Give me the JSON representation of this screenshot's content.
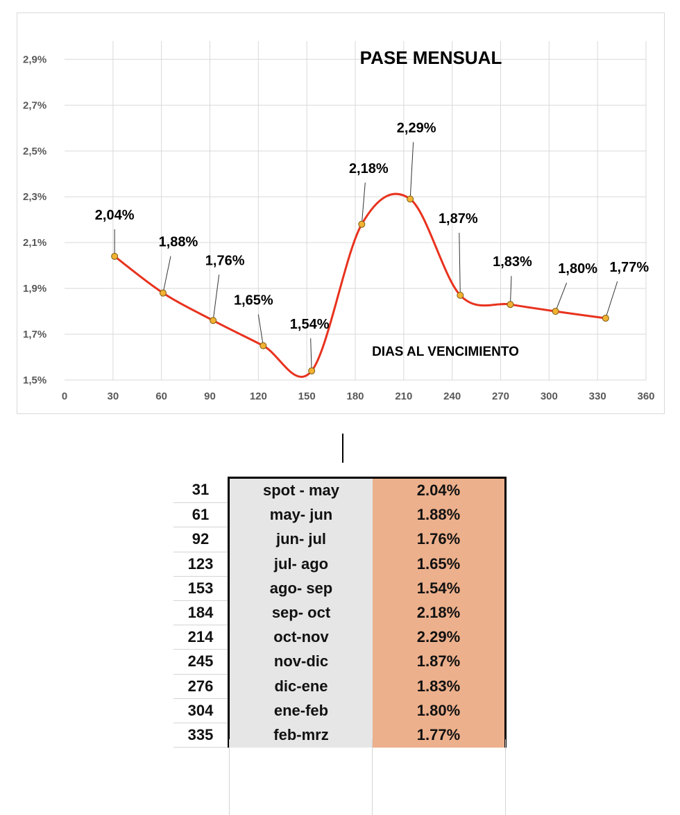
{
  "chart_data": {
    "type": "line",
    "title": "PASE MENSUAL",
    "xlabel": "DIAS AL VENCIMIENTO",
    "ylabel": "",
    "xlim": [
      0,
      360
    ],
    "ylim": [
      1.5,
      3.0
    ],
    "x_ticks": [
      "0",
      "30",
      "60",
      "90",
      "120",
      "150",
      "180",
      "210",
      "240",
      "270",
      "300",
      "330",
      "360"
    ],
    "y_ticks": [
      "1,5%",
      "1,7%",
      "1,9%",
      "2,1%",
      "2,3%",
      "2,5%",
      "2,7%",
      "2,9%"
    ],
    "grid": "vertical and horizontal",
    "line_color": "#e8321e",
    "marker_color": "#f2b233",
    "series": [
      {
        "x": [
          31,
          61,
          92,
          123,
          153,
          184,
          214,
          245,
          276,
          304,
          335
        ],
        "y": [
          2.04,
          1.88,
          1.76,
          1.65,
          1.54,
          2.18,
          2.29,
          1.87,
          1.83,
          1.8,
          1.77
        ],
        "labels": [
          "2,04%",
          "1,88%",
          "1,76%",
          "1,65%",
          "1,54%",
          "2,18%",
          "2,29%",
          "1,87%",
          "1,83%",
          "1,80%",
          "1,77%"
        ]
      }
    ]
  },
  "table": {
    "rows": [
      {
        "days": "31",
        "period": "spot - may",
        "value": "2.04%"
      },
      {
        "days": "61",
        "period": "may- jun",
        "value": "1.88%"
      },
      {
        "days": "92",
        "period": "jun- jul",
        "value": "1.76%"
      },
      {
        "days": "123",
        "period": "jul- ago",
        "value": "1.65%"
      },
      {
        "days": "153",
        "period": "ago- sep",
        "value": "1.54%"
      },
      {
        "days": "184",
        "period": "sep- oct",
        "value": "2.18%"
      },
      {
        "days": "214",
        "period": "oct-nov",
        "value": "2.29%"
      },
      {
        "days": "245",
        "period": "nov-dic",
        "value": "1.87%"
      },
      {
        "days": "276",
        "period": "dic-ene",
        "value": "1.83%"
      },
      {
        "days": "304",
        "period": "ene-feb",
        "value": "1.80%"
      },
      {
        "days": "335",
        "period": "feb-mrz",
        "value": "1.77%"
      }
    ]
  }
}
